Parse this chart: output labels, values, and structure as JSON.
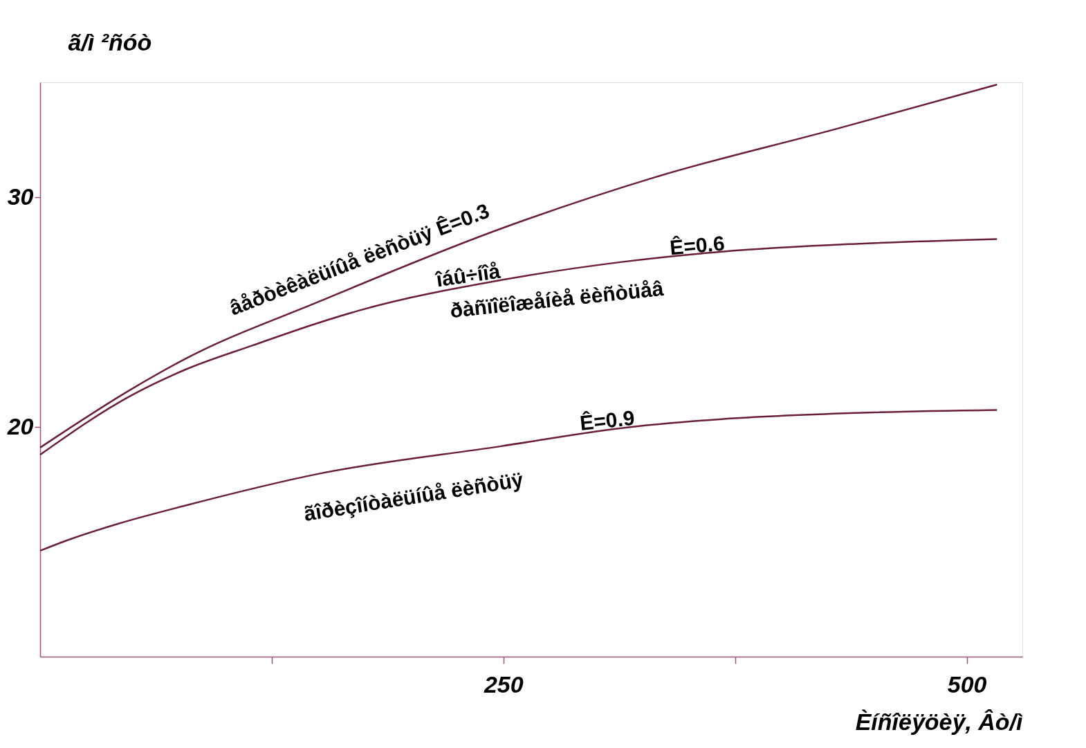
{
  "chart_data": {
    "type": "line",
    "ylabel": "ã/ì ²ñóò",
    "xlabel": "Èíñîëÿöèÿ, Âò/ì",
    "xlim": [
      0,
      530
    ],
    "xticks": [
      {
        "value": 125,
        "label": null
      },
      250,
      {
        "value": 375,
        "label": null
      },
      500
    ],
    "ylim": [
      10,
      35
    ],
    "yticks": [
      20,
      30
    ],
    "grid": false,
    "line_style": "solid",
    "marker": "none",
    "series": [
      {
        "name": "âåðòèêàëüíûå ëèñòüÿ Ê=0.3",
        "color": "#6b1d3a",
        "x": [
          0,
          49.6,
          78.5,
          150.9,
          248.6,
          331.8,
          429.5,
          516.3
        ],
        "values": [
          19.1,
          21.66,
          22.97,
          25.47,
          28.63,
          30.87,
          32.97,
          34.9
        ]
      },
      {
        "name": "Ê=0.6",
        "color": "#6b1d3a",
        "x": [
          0,
          49.6,
          78.5,
          114.7,
          150.9,
          172.6,
          248.6,
          313.7,
          367.9,
          440.3,
          516.3
        ],
        "values": [
          18.79,
          21.39,
          22.5,
          23.55,
          24.55,
          25.08,
          26.39,
          27.18,
          27.63,
          27.97,
          28.18
        ]
      },
      {
        "name": "Ê=0.9",
        "color": "#6b1d3a",
        "x": [
          0,
          13.4,
          42.3,
          78.5,
          150.9,
          248.6,
          313.7,
          367.9,
          440.3,
          516.3
        ],
        "values": [
          14.61,
          15.03,
          15.79,
          16.58,
          17.97,
          19.16,
          19.95,
          20.34,
          20.61,
          20.74
        ]
      }
    ],
    "annotations": [
      "îáû÷íîå",
      "ðàñïîëîæåíèå ëèñòüåâ",
      "ãîðèçîíòàëüíûå ëèñòüÿ"
    ]
  }
}
